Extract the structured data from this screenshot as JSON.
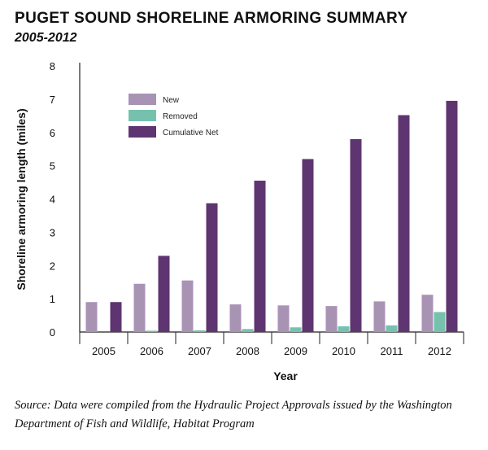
{
  "chart_data": {
    "type": "bar",
    "title": "PUGET SOUND SHORELINE ARMORING SUMMARY",
    "subtitle": "2005-2012",
    "xlabel": "Year",
    "ylabel": "Shoreline armoring length (miles)",
    "categories": [
      "2005",
      "2006",
      "2007",
      "2008",
      "2009",
      "2010",
      "2011",
      "2012"
    ],
    "ylim": [
      0,
      8
    ],
    "yticks": [
      0,
      1,
      2,
      3,
      4,
      5,
      6,
      7,
      8
    ],
    "grid": false,
    "legend": "top-left",
    "series": [
      {
        "name": "New",
        "color": "#a893b5",
        "values": [
          0.9,
          1.45,
          1.55,
          0.83,
          0.8,
          0.78,
          0.92,
          1.12
        ]
      },
      {
        "name": "Removed",
        "color": "#76c1ae",
        "values": [
          0.0,
          0.04,
          0.05,
          0.09,
          0.14,
          0.17,
          0.2,
          0.6
        ]
      },
      {
        "name": "Cumulative Net",
        "color": "#5e3570",
        "values": [
          0.9,
          2.29,
          3.87,
          4.55,
          5.2,
          5.8,
          6.52,
          6.95
        ]
      }
    ]
  },
  "footnote": "Source: Data were compiled from the Hydraulic Project Approvals issued by the Washington Department of Fish and Wildlife, Habitat Program"
}
